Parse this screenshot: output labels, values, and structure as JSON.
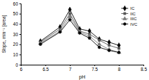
{
  "chart_data": {
    "type": "line",
    "x_label": "pH",
    "y_label": "Slope, min⁻¹ [area]",
    "x": [
      6.4,
      6.8,
      7.0,
      7.2,
      7.4,
      7.6,
      7.8,
      8.0
    ],
    "xlim": [
      6,
      8.5
    ],
    "xticks": [
      6,
      6.5,
      7,
      7.5,
      8,
      8.5
    ],
    "ylim": [
      0,
      60
    ],
    "yticks": [
      0,
      10,
      20,
      30,
      40,
      50,
      60
    ],
    "grid": false,
    "legend": "top-right",
    "series": [
      {
        "name": "IC",
        "color": "#000000",
        "marker": "diamond",
        "values": [
          23,
          37,
          54,
          35,
          33,
          25,
          22,
          19
        ]
      },
      {
        "name": "IIC",
        "color": "#555555",
        "marker": "square",
        "values": [
          22,
          35,
          50,
          33,
          30,
          24,
          19,
          16
        ]
      },
      {
        "name": "IIIC",
        "color": "#7a7a7a",
        "marker": "triangle",
        "values": [
          21,
          33,
          47,
          32,
          28,
          20,
          15,
          12
        ]
      },
      {
        "name": "IVC",
        "color": "#000000",
        "marker": "circle",
        "values": [
          20,
          32,
          44,
          31,
          26,
          17,
          14,
          12
        ]
      }
    ]
  }
}
